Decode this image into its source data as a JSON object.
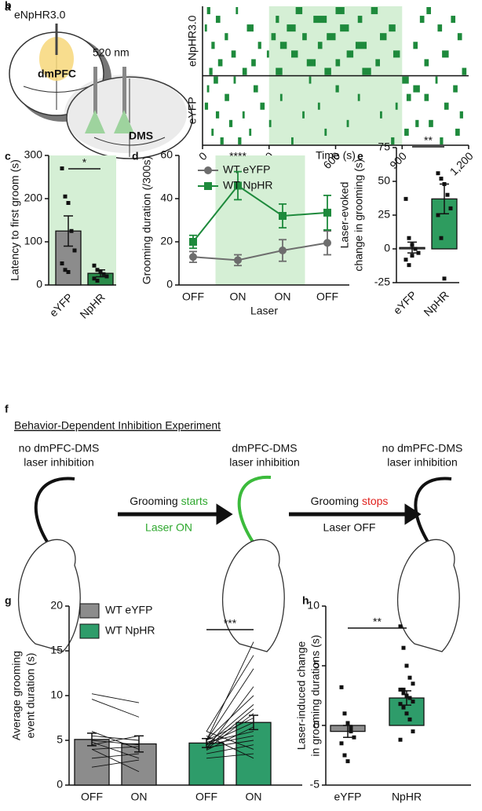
{
  "panel_a": {
    "letter": "a",
    "construct": "eNpHR3.0",
    "region1": "dmPFC",
    "wavelength": "520 nm",
    "region2": "DMS"
  },
  "panel_f": {
    "letter": "f",
    "title": "Behavior-Dependent Inhibition Experiment",
    "left_lines": [
      "no dmPFC-DMS",
      "laser inhibition"
    ],
    "middle_lines": [
      "dmPFC-DMS",
      "laser inhibition"
    ],
    "right_lines": [
      "no dmPFC-DMS",
      "laser inhibition"
    ],
    "arrow1_text": "Grooming ",
    "arrow1_highlight": "starts",
    "arrow1_sub": "Laser ON",
    "arrow2_text": "Grooming ",
    "arrow2_highlight": "stops",
    "arrow2_sub": "Laser OFF"
  },
  "chart_data": [
    {
      "letter": "b",
      "type": "raster",
      "xlabel": "Time (s)",
      "xlim": [
        0,
        1200
      ],
      "xticks": [
        0,
        300,
        600,
        900,
        {
          "value": 1200,
          "label": "1,200"
        }
      ],
      "shade": [
        300,
        900
      ],
      "color": "#1e8a3c",
      "groups": [
        {
          "name": "eNpHR3.0",
          "rows": [
            [
              [
                20,
                35
              ],
              [
                150,
                160
              ],
              [
                420,
                450
              ],
              [
                600,
                640
              ],
              [
                760,
                790
              ],
              [
                1010,
                1030
              ]
            ],
            [
              [
                60,
                80
              ],
              [
                330,
                345
              ],
              [
                500,
                560
              ],
              [
                700,
                720
              ],
              [
                980,
                1000
              ],
              [
                1120,
                1140
              ]
            ],
            [
              [
                10,
                20
              ],
              [
                200,
                230
              ],
              [
                380,
                420
              ],
              [
                620,
                660
              ],
              [
                840,
                870
              ],
              [
                1060,
                1080
              ]
            ],
            [
              [
                100,
                115
              ],
              [
                310,
                330
              ],
              [
                450,
                470
              ],
              [
                560,
                600
              ],
              [
                800,
                830
              ],
              [
                1150,
                1170
              ]
            ],
            [
              [
                40,
                55
              ],
              [
                250,
                265
              ],
              [
                350,
                380
              ],
              [
                520,
                540
              ],
              [
                690,
                740
              ],
              [
                950,
                970
              ]
            ],
            [
              [
                130,
                150
              ],
              [
                290,
                300
              ],
              [
                400,
                430
              ],
              [
                650,
                680
              ],
              [
                860,
                890
              ],
              [
                1080,
                1110
              ]
            ],
            [
              [
                70,
                90
              ],
              [
                220,
                240
              ],
              [
                470,
                510
              ],
              [
                600,
                620
              ],
              [
                780,
                800
              ],
              [
                1000,
                1020
              ]
            ],
            [
              [
                30,
                45
              ],
              [
                180,
                200
              ],
              [
                330,
                360
              ],
              [
                550,
                580
              ],
              [
                720,
                760
              ],
              [
                1170,
                1190
              ]
            ]
          ]
        },
        {
          "name": "eYFP",
          "rows": [
            [
              [
                50,
                70
              ],
              [
                140,
                150
              ],
              [
                480,
                490
              ],
              [
                900,
                930
              ],
              [
                1050,
                1060
              ]
            ],
            [
              [
                20,
                30
              ],
              [
                230,
                250
              ],
              [
                600,
                615
              ],
              [
                950,
                980
              ],
              [
                1130,
                1150
              ]
            ],
            [
              [
                100,
                120
              ],
              [
                350,
                360
              ],
              [
                700,
                710
              ],
              [
                920,
                940
              ],
              [
                1000,
                1020
              ]
            ],
            [
              [
                10,
                25
              ],
              [
                260,
                280
              ],
              [
                520,
                530
              ],
              [
                870,
                880
              ],
              [
                1090,
                1110
              ]
            ],
            [
              [
                60,
                75
              ],
              [
                180,
                190
              ],
              [
                450,
                460
              ],
              [
                800,
                810
              ],
              [
                1160,
                1175
              ]
            ],
            [
              [
                120,
                135
              ],
              [
                300,
                310
              ],
              [
                650,
                660
              ],
              [
                960,
                975
              ],
              [
                1020,
                1040
              ]
            ],
            [
              [
                40,
                50
              ],
              [
                210,
                220
              ],
              [
                550,
                560
              ],
              [
                910,
                930
              ],
              [
                1140,
                1160
              ]
            ],
            [
              [
                80,
                95
              ],
              [
                160,
                175
              ],
              [
                400,
                410
              ],
              [
                850,
                865
              ],
              [
                1070,
                1085
              ]
            ]
          ]
        }
      ]
    },
    {
      "letter": "c",
      "type": "bar",
      "ylabel": "Latency to first groom (s)",
      "ylim": [
        0,
        300
      ],
      "yticks": [
        0,
        100,
        200,
        300
      ],
      "categories": [
        "eYFP",
        "NpHR"
      ],
      "values": [
        125,
        27
      ],
      "errors": [
        35,
        8
      ],
      "colors": [
        "#8c8c8c",
        "#2a8b4a"
      ],
      "shade": [
        0,
        1
      ],
      "points": [
        [
          270,
          205,
          190,
          125,
          80,
          50,
          35,
          30
        ],
        [
          45,
          35,
          30,
          25,
          20,
          15,
          10
        ]
      ],
      "significance": {
        "label": "*",
        "from": 0,
        "to": 1
      }
    },
    {
      "letter": "d",
      "type": "line",
      "xlabel": "Laser",
      "ylabel": "Grooming duration (/300s)",
      "ylim": [
        0,
        60
      ],
      "yticks": [
        0,
        20,
        40,
        60
      ],
      "categories": [
        "OFF",
        "ON",
        "ON",
        "OFF"
      ],
      "shade": [
        1,
        2
      ],
      "series": [
        {
          "name": "WT eYFP",
          "color": "#6d6d6d",
          "marker": "circle",
          "values": [
            13,
            11.5,
            16,
            19.5
          ],
          "errors": [
            2.5,
            2.5,
            5,
            5.5
          ]
        },
        {
          "name": "WT NpHR",
          "color": "#1e8a3c",
          "marker": "square",
          "values": [
            20,
            46,
            32,
            33.5
          ],
          "errors": [
            3,
            6.5,
            5.5,
            8
          ]
        }
      ],
      "significance": {
        "label": "****",
        "from": 1,
        "to": 1
      }
    },
    {
      "letter": "e",
      "type": "bar",
      "ylabel": [
        "Laser-evoked",
        "change in grooming (s)"
      ],
      "ylim": [
        -25,
        75
      ],
      "yticks": [
        -25,
        0,
        25,
        50,
        75
      ],
      "categories": [
        "eYFP",
        "NpHR"
      ],
      "values": [
        1,
        37
      ],
      "errors": [
        4,
        11
      ],
      "colors": [
        "#8c8c8c",
        "#2e9c5f"
      ],
      "points": [
        [
          37,
          8,
          3,
          0,
          -3,
          -8,
          -12,
          -5
        ],
        [
          56,
          52,
          48,
          40,
          30,
          25,
          8,
          -22
        ]
      ],
      "significance": {
        "label": "**",
        "from": 0,
        "to": 1
      }
    },
    {
      "letter": "g",
      "type": "bar",
      "ylabel": [
        "Average grooming",
        "event duration (s)"
      ],
      "ylim": [
        0,
        20
      ],
      "yticks": [
        0,
        5,
        10,
        15,
        20
      ],
      "categories": [
        "OFF",
        "ON",
        "OFF",
        "ON"
      ],
      "series": [
        {
          "name": "WT eYFP",
          "color": "#8c8c8c",
          "values": [
            5.1,
            4.6,
            null,
            null
          ],
          "errors": [
            0.7,
            0.9,
            null,
            null
          ]
        },
        {
          "name": "WT NpHR",
          "color": "#2e9c6a",
          "values": [
            null,
            null,
            4.7,
            7.0
          ],
          "errors": [
            null,
            null,
            0.5,
            0.8
          ]
        }
      ],
      "pairs": [
        {
          "from": 0,
          "to": 1,
          "values": [
            [
              10.2,
              9.2
            ],
            [
              9.6,
              7.6
            ],
            [
              6,
              4
            ],
            [
              5.5,
              5
            ],
            [
              5,
              4.5
            ],
            [
              4.8,
              3
            ],
            [
              4.5,
              5.5
            ],
            [
              4,
              1.5
            ],
            [
              4,
              4.3
            ],
            [
              2,
              2.8
            ],
            [
              3,
              3.5
            ]
          ]
        },
        {
          "from": 2,
          "to": 3,
          "values": [
            [
              5,
              16
            ],
            [
              6,
              14.5
            ],
            [
              5,
              13
            ],
            [
              4,
              11
            ],
            [
              5,
              10
            ],
            [
              4.5,
              9
            ],
            [
              4.2,
              8.5
            ],
            [
              4,
              8
            ],
            [
              5,
              7.5
            ],
            [
              4.6,
              7
            ],
            [
              3.9,
              6.5
            ],
            [
              4.8,
              6
            ],
            [
              4.5,
              5.5
            ],
            [
              4.2,
              5
            ],
            [
              3.5,
              4.5
            ],
            [
              3,
              3.5
            ],
            [
              6,
              4
            ],
            [
              5.5,
              3
            ]
          ]
        }
      ],
      "significance": {
        "label": "***",
        "from": 2,
        "to": 3
      }
    },
    {
      "letter": "h",
      "type": "bar",
      "ylabel": [
        "Laser-induced change",
        "in grooming durations (s)"
      ],
      "ylim": [
        -5,
        10
      ],
      "yticks": [
        -5,
        0,
        5,
        10
      ],
      "categories": [
        "eYFP",
        "NpHR"
      ],
      "values": [
        -0.5,
        2.3
      ],
      "errors": [
        0.5,
        0.6
      ],
      "colors": [
        "#8c8c8c",
        "#2e9c6a"
      ],
      "points": [
        [
          3.2,
          1,
          0.2,
          -0.5,
          -1,
          -1.5,
          -2.5,
          -3,
          -0.2
        ],
        [
          8.3,
          6.5,
          5,
          4,
          3.5,
          3,
          2.7,
          2.5,
          2.3,
          2,
          1.8,
          1.5,
          1,
          0.5,
          -0.5,
          -1.2,
          3
        ]
      ],
      "significance": {
        "label": "**",
        "from": 0,
        "to": 1
      }
    }
  ]
}
